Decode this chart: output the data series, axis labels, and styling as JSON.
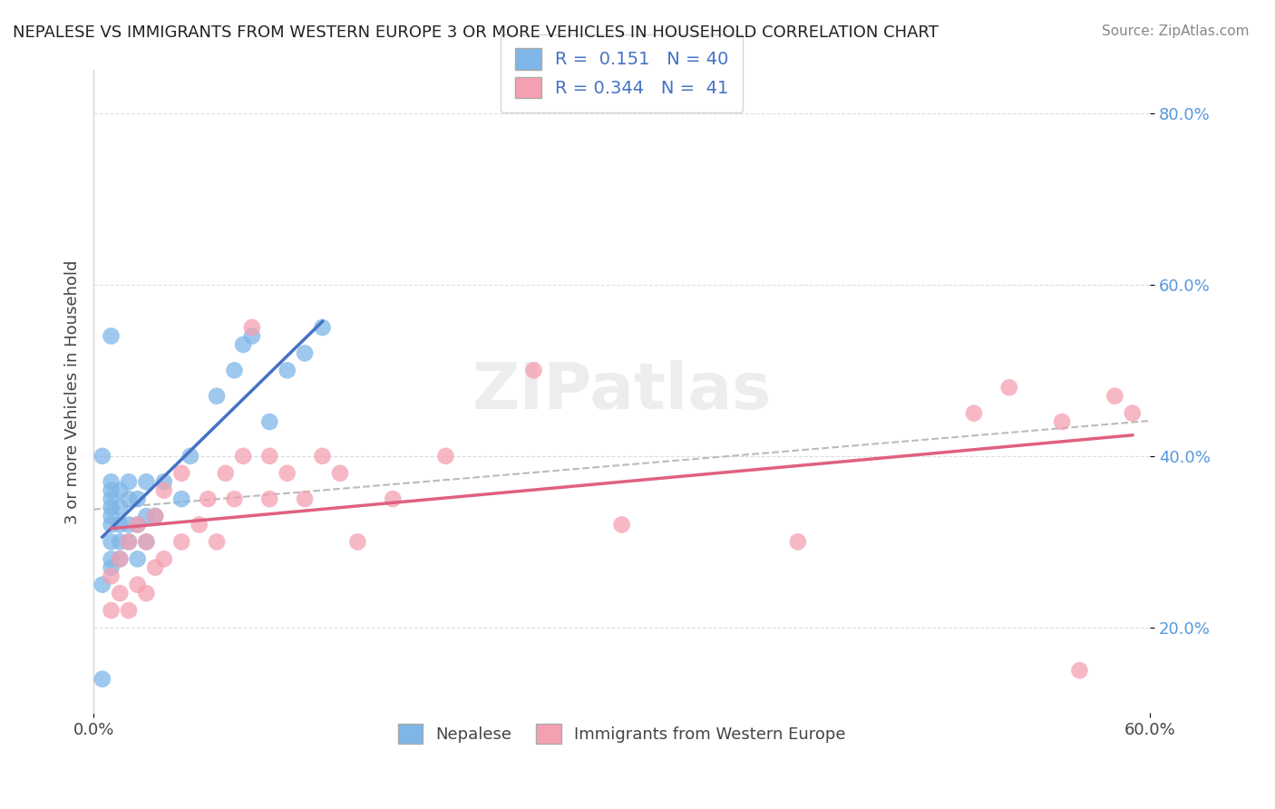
{
  "title": "NEPALESE VS IMMIGRANTS FROM WESTERN EUROPE 3 OR MORE VEHICLES IN HOUSEHOLD CORRELATION CHART",
  "source": "Source: ZipAtlas.com",
  "ylabel": "3 or more Vehicles in Household",
  "xlabel": "",
  "xlim": [
    0,
    0.6
  ],
  "ylim": [
    0.1,
    0.85
  ],
  "yticks": [
    0.2,
    0.4,
    0.6,
    0.8
  ],
  "ytick_labels": [
    "20.0%",
    "40.0%",
    "60.0%",
    "80.0%"
  ],
  "xticks": [
    0.0,
    0.1,
    0.2,
    0.3,
    0.4,
    0.5,
    0.6
  ],
  "xtick_labels": [
    "0.0%",
    "",
    "",
    "",
    "",
    "",
    "60.0%"
  ],
  "nepalese_R": 0.151,
  "nepalese_N": 40,
  "western_europe_R": 0.344,
  "western_europe_N": 41,
  "nepalese_color": "#7EB6E8",
  "western_europe_color": "#F4A0B0",
  "nepalese_line_color": "#4472C4",
  "western_europe_line_color": "#E06080",
  "trend_line_color": "#AAAAAA",
  "background_color": "#FFFFFF",
  "grid_color": "#DDDDDD",
  "watermark": "ZIPatlas",
  "nepalese_x": [
    0.01,
    0.01,
    0.01,
    0.01,
    0.01,
    0.01,
    0.01,
    0.01,
    0.01,
    0.015,
    0.015,
    0.015,
    0.015,
    0.015,
    0.02,
    0.02,
    0.02,
    0.02,
    0.025,
    0.025,
    0.025,
    0.03,
    0.03,
    0.03,
    0.035,
    0.04,
    0.05,
    0.055,
    0.07,
    0.08,
    0.085,
    0.09,
    0.1,
    0.11,
    0.12,
    0.13,
    0.005,
    0.005,
    0.005,
    0.01
  ],
  "nepalese_y": [
    0.27,
    0.28,
    0.3,
    0.32,
    0.33,
    0.34,
    0.35,
    0.36,
    0.37,
    0.28,
    0.3,
    0.32,
    0.34,
    0.36,
    0.3,
    0.32,
    0.35,
    0.37,
    0.28,
    0.32,
    0.35,
    0.3,
    0.33,
    0.37,
    0.33,
    0.37,
    0.35,
    0.4,
    0.47,
    0.5,
    0.53,
    0.54,
    0.44,
    0.5,
    0.52,
    0.55,
    0.14,
    0.25,
    0.4,
    0.54
  ],
  "western_europe_x": [
    0.01,
    0.01,
    0.015,
    0.015,
    0.02,
    0.02,
    0.025,
    0.025,
    0.03,
    0.03,
    0.035,
    0.035,
    0.04,
    0.04,
    0.05,
    0.05,
    0.06,
    0.065,
    0.07,
    0.075,
    0.08,
    0.085,
    0.09,
    0.1,
    0.1,
    0.11,
    0.12,
    0.13,
    0.14,
    0.15,
    0.17,
    0.2,
    0.25,
    0.3,
    0.4,
    0.5,
    0.52,
    0.55,
    0.56,
    0.58,
    0.59
  ],
  "western_europe_y": [
    0.22,
    0.26,
    0.24,
    0.28,
    0.22,
    0.3,
    0.25,
    0.32,
    0.24,
    0.3,
    0.27,
    0.33,
    0.28,
    0.36,
    0.3,
    0.38,
    0.32,
    0.35,
    0.3,
    0.38,
    0.35,
    0.4,
    0.55,
    0.35,
    0.4,
    0.38,
    0.35,
    0.4,
    0.38,
    0.3,
    0.35,
    0.4,
    0.5,
    0.32,
    0.3,
    0.45,
    0.48,
    0.44,
    0.15,
    0.47,
    0.45
  ]
}
